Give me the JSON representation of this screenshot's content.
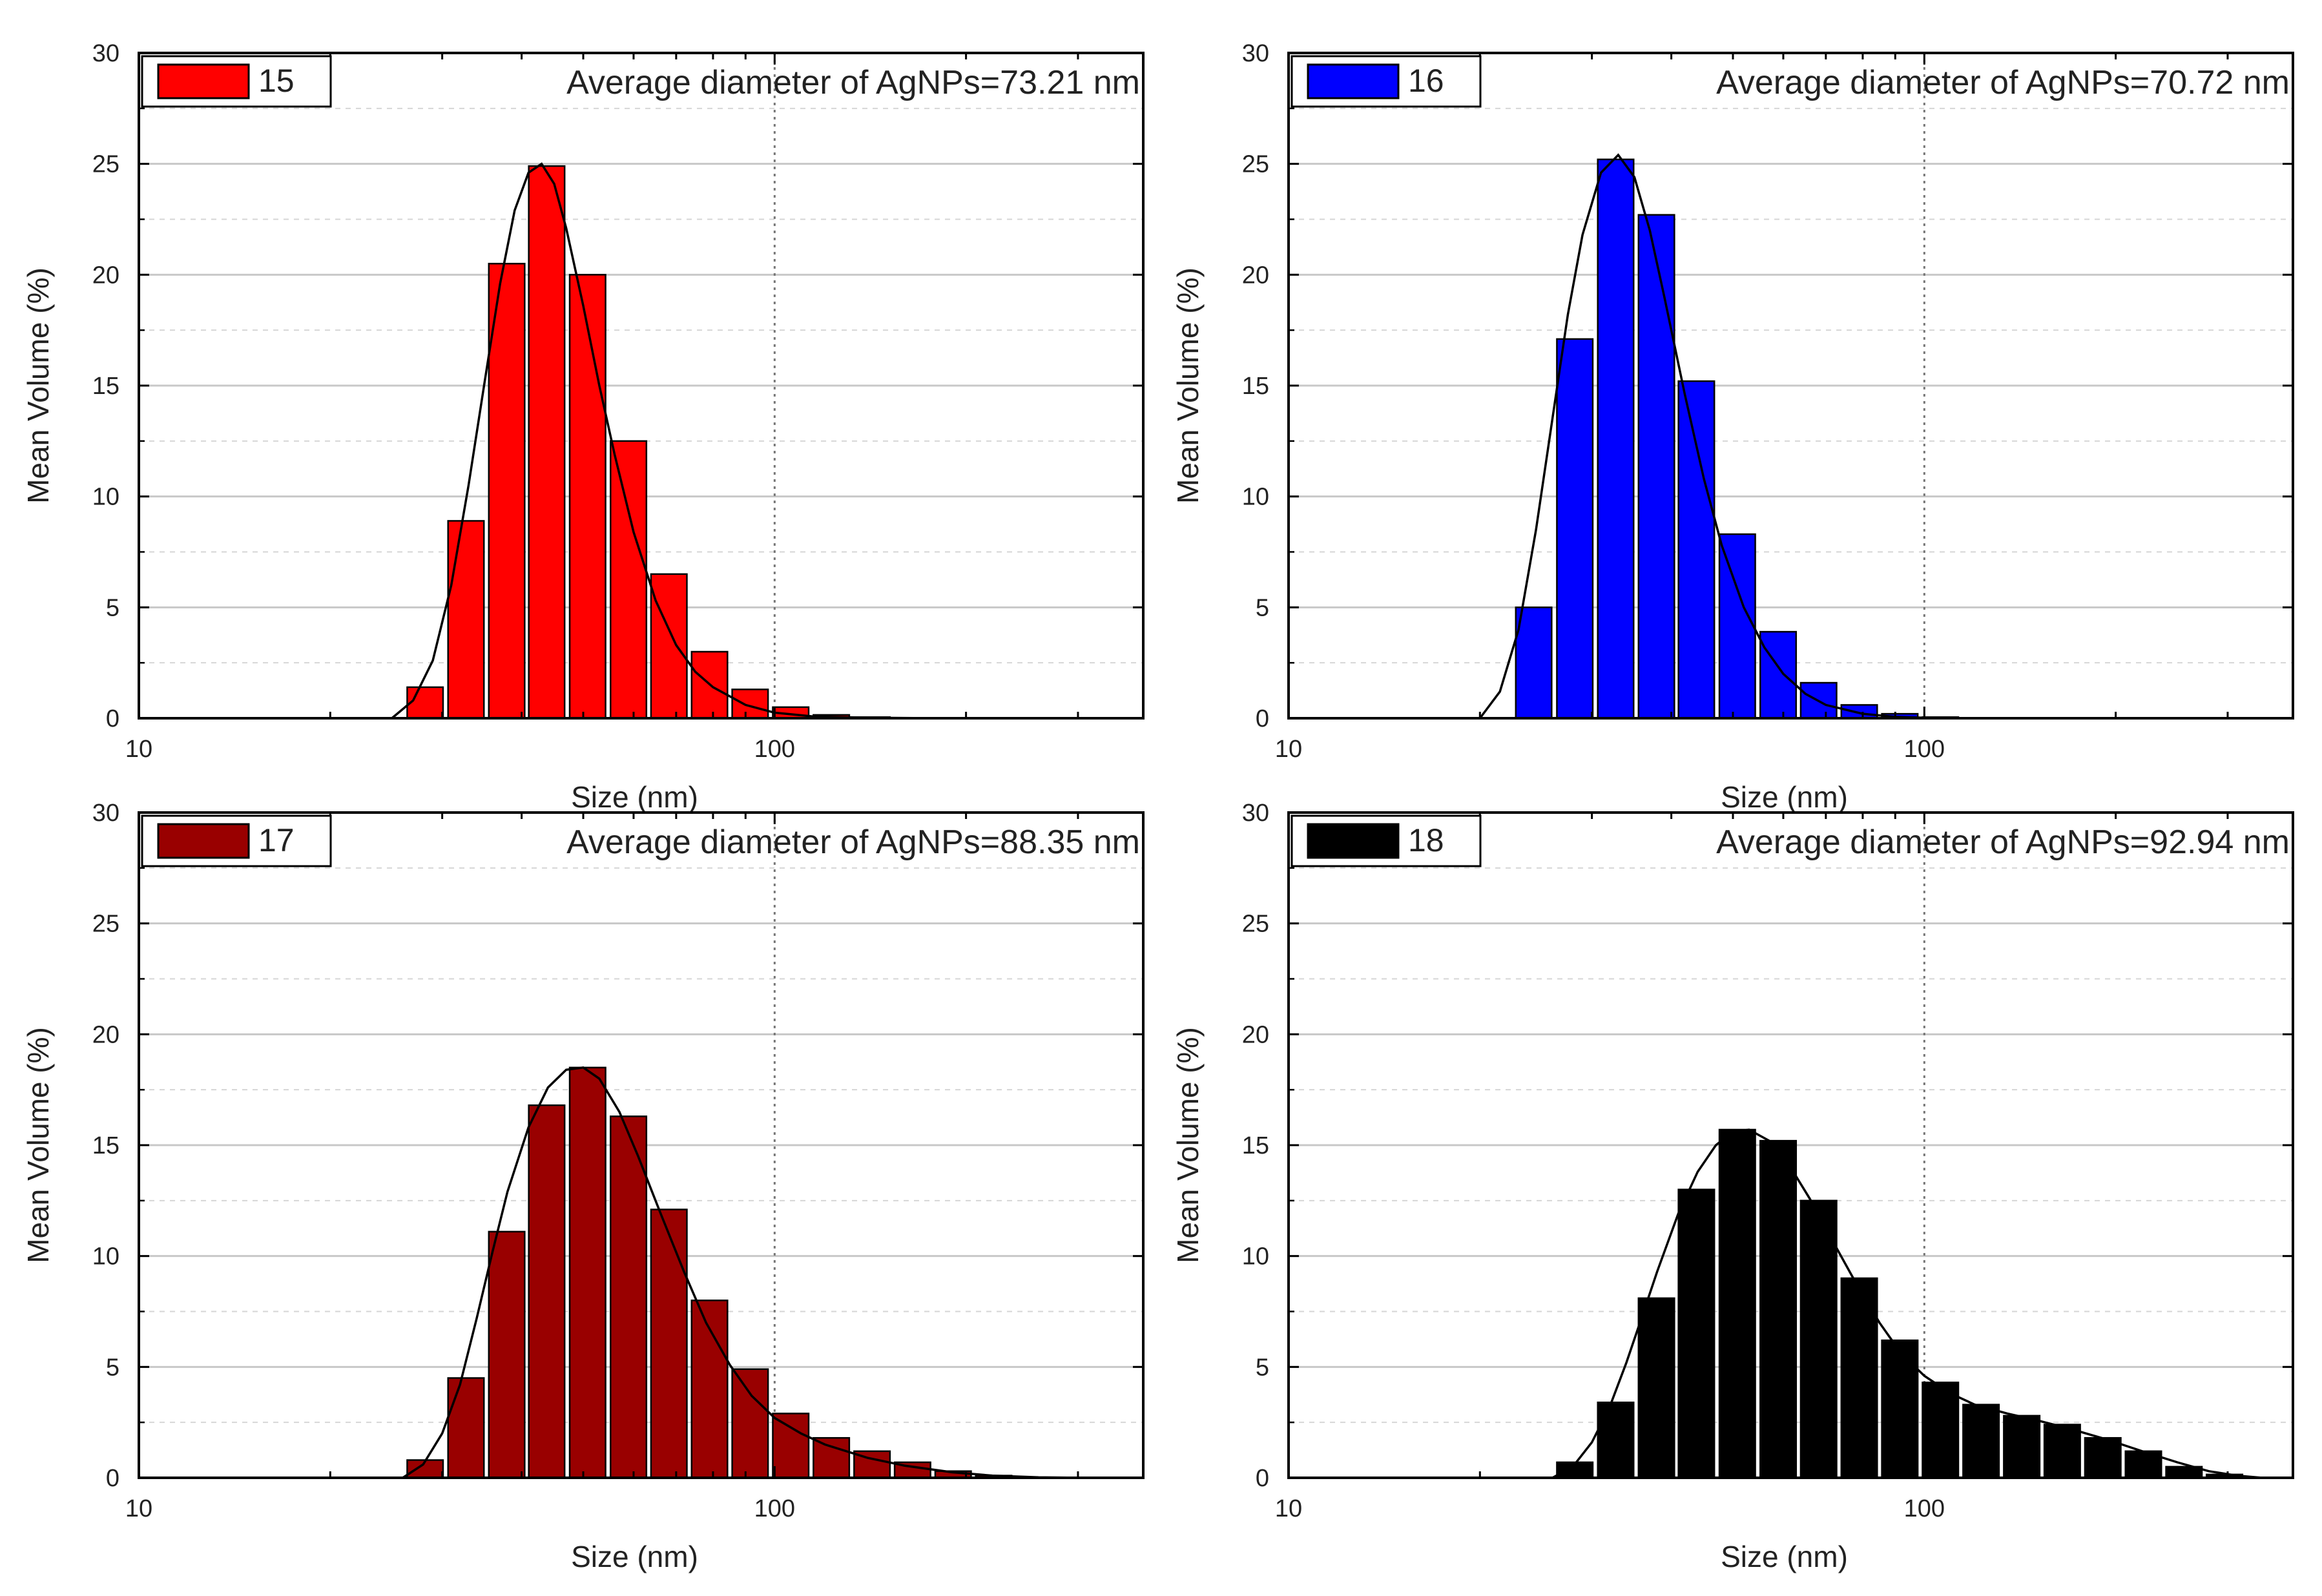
{
  "chart_data": [
    {
      "type": "bar",
      "legend": "15",
      "color": "#ff0000",
      "annotation": "Average diameter of AgNPs=73.21 nm",
      "xlabel": "Size (nm)",
      "ylabel": "Mean Volume (%)",
      "xscale": "log",
      "xlim": [
        10,
        380
      ],
      "ylim": [
        0,
        30
      ],
      "xticks": [
        "10",
        "100"
      ],
      "yticks": [
        "0",
        "5",
        "10",
        "15",
        "20",
        "25",
        "30"
      ],
      "grid": true,
      "reference_line_x": 100,
      "bar_log_width": 0.0625,
      "bars": [
        {
          "x": 28.2,
          "y": 1.4
        },
        {
          "x": 32.7,
          "y": 8.9
        },
        {
          "x": 37.9,
          "y": 20.5
        },
        {
          "x": 43.8,
          "y": 24.9
        },
        {
          "x": 50.8,
          "y": 20.0
        },
        {
          "x": 58.9,
          "y": 12.5
        },
        {
          "x": 68.2,
          "y": 6.5
        },
        {
          "x": 79.0,
          "y": 3.0
        },
        {
          "x": 91.5,
          "y": 1.3
        },
        {
          "x": 106.0,
          "y": 0.5
        },
        {
          "x": 122.8,
          "y": 0.15
        },
        {
          "x": 142.3,
          "y": 0.05
        }
      ],
      "curve": [
        [
          25.0,
          0.0
        ],
        [
          27.0,
          0.8
        ],
        [
          29.0,
          2.6
        ],
        [
          31.0,
          6.0
        ],
        [
          33.0,
          10.5
        ],
        [
          35.0,
          15.2
        ],
        [
          37.0,
          19.6
        ],
        [
          39.0,
          22.9
        ],
        [
          41.0,
          24.6
        ],
        [
          43.0,
          25.0
        ],
        [
          45.0,
          24.1
        ],
        [
          47.0,
          22.1
        ],
        [
          50.0,
          18.6
        ],
        [
          53.0,
          15.0
        ],
        [
          56.0,
          11.9
        ],
        [
          60.0,
          8.4
        ],
        [
          65.0,
          5.3
        ],
        [
          70.0,
          3.3
        ],
        [
          75.0,
          2.1
        ],
        [
          80.0,
          1.4
        ],
        [
          90.0,
          0.6
        ],
        [
          100.0,
          0.25
        ],
        [
          115.0,
          0.08
        ],
        [
          140.0,
          0.02
        ],
        [
          180.0,
          0.0
        ]
      ]
    },
    {
      "type": "bar",
      "legend": "16",
      "color": "#0000ff",
      "annotation": "Average diameter of AgNPs=70.72 nm",
      "xlabel": "Size (nm)",
      "ylabel": "Mean Volume (%)",
      "xscale": "log",
      "xlim": [
        10,
        380
      ],
      "ylim": [
        0,
        30
      ],
      "xticks": [
        "10",
        "100"
      ],
      "yticks": [
        "0",
        "5",
        "10",
        "15",
        "20",
        "25",
        "30"
      ],
      "grid": true,
      "reference_line_x": 100,
      "bar_log_width": 0.0625,
      "bars": [
        {
          "x": 24.3,
          "y": 5.0
        },
        {
          "x": 28.2,
          "y": 17.1
        },
        {
          "x": 32.7,
          "y": 25.2
        },
        {
          "x": 37.9,
          "y": 22.7
        },
        {
          "x": 43.8,
          "y": 15.2
        },
        {
          "x": 50.8,
          "y": 8.3
        },
        {
          "x": 58.9,
          "y": 3.9
        },
        {
          "x": 68.2,
          "y": 1.6
        },
        {
          "x": 79.0,
          "y": 0.6
        },
        {
          "x": 91.5,
          "y": 0.2
        },
        {
          "x": 106.0,
          "y": 0.05
        }
      ],
      "curve": [
        [
          20.0,
          0.0
        ],
        [
          21.5,
          1.2
        ],
        [
          23.0,
          4.0
        ],
        [
          24.5,
          8.5
        ],
        [
          26.0,
          13.5
        ],
        [
          27.5,
          18.2
        ],
        [
          29.0,
          21.8
        ],
        [
          31.0,
          24.6
        ],
        [
          33.0,
          25.4
        ],
        [
          35.0,
          24.4
        ],
        [
          37.0,
          22.0
        ],
        [
          39.0,
          19.0
        ],
        [
          42.0,
          14.6
        ],
        [
          45.0,
          10.8
        ],
        [
          48.0,
          7.8
        ],
        [
          52.0,
          5.0
        ],
        [
          56.0,
          3.2
        ],
        [
          60.0,
          2.0
        ],
        [
          65.0,
          1.1
        ],
        [
          70.0,
          0.6
        ],
        [
          80.0,
          0.2
        ],
        [
          90.0,
          0.06
        ],
        [
          100.0,
          0.02
        ],
        [
          110.0,
          0.0
        ]
      ]
    },
    {
      "type": "bar",
      "legend": "17",
      "color": "#990000",
      "annotation": "Average diameter of AgNPs=88.35 nm",
      "xlabel": "Size (nm)",
      "ylabel": "Mean Volume (%)",
      "xscale": "log",
      "xlim": [
        10,
        380
      ],
      "ylim": [
        0,
        30
      ],
      "xticks": [
        "10",
        "100"
      ],
      "yticks": [
        "0",
        "5",
        "10",
        "15",
        "20",
        "25",
        "30"
      ],
      "grid": true,
      "reference_line_x": 100,
      "bar_log_width": 0.0625,
      "bars": [
        {
          "x": 28.2,
          "y": 0.8
        },
        {
          "x": 32.7,
          "y": 4.5
        },
        {
          "x": 37.9,
          "y": 11.1
        },
        {
          "x": 43.8,
          "y": 16.8
        },
        {
          "x": 50.8,
          "y": 18.5
        },
        {
          "x": 58.9,
          "y": 16.3
        },
        {
          "x": 68.2,
          "y": 12.1
        },
        {
          "x": 79.0,
          "y": 8.0
        },
        {
          "x": 91.5,
          "y": 4.9
        },
        {
          "x": 106.0,
          "y": 2.9
        },
        {
          "x": 122.8,
          "y": 1.8
        },
        {
          "x": 142.3,
          "y": 1.2
        },
        {
          "x": 164.8,
          "y": 0.7
        },
        {
          "x": 190.9,
          "y": 0.3
        },
        {
          "x": 221.1,
          "y": 0.1
        }
      ],
      "curve": [
        [
          26.0,
          0.0
        ],
        [
          28.0,
          0.6
        ],
        [
          30.0,
          2.0
        ],
        [
          32.0,
          4.2
        ],
        [
          34.0,
          7.2
        ],
        [
          36.0,
          10.2
        ],
        [
          38.0,
          12.9
        ],
        [
          41.0,
          15.8
        ],
        [
          44.0,
          17.6
        ],
        [
          47.0,
          18.4
        ],
        [
          50.0,
          18.5
        ],
        [
          53.0,
          18.0
        ],
        [
          57.0,
          16.5
        ],
        [
          61.0,
          14.5
        ],
        [
          66.0,
          12.0
        ],
        [
          72.0,
          9.3
        ],
        [
          78.0,
          7.0
        ],
        [
          85.0,
          5.1
        ],
        [
          92.0,
          3.7
        ],
        [
          100.0,
          2.7
        ],
        [
          110.0,
          2.0
        ],
        [
          120.0,
          1.5
        ],
        [
          140.0,
          0.9
        ],
        [
          160.0,
          0.55
        ],
        [
          190.0,
          0.25
        ],
        [
          220.0,
          0.1
        ],
        [
          260.0,
          0.02
        ],
        [
          300.0,
          0.0
        ]
      ]
    },
    {
      "type": "bar",
      "legend": "18",
      "color": "#000000",
      "annotation": "Average diameter of AgNPs=92.94 nm",
      "xlabel": "Size (nm)",
      "ylabel": "Mean Volume (%)",
      "xscale": "log",
      "xlim": [
        10,
        380
      ],
      "ylim": [
        0,
        30
      ],
      "xticks": [
        "10",
        "100"
      ],
      "yticks": [
        "0",
        "5",
        "10",
        "15",
        "20",
        "25",
        "30"
      ],
      "grid": true,
      "reference_line_x": 100,
      "bar_log_width": 0.0625,
      "bars": [
        {
          "x": 28.2,
          "y": 0.7
        },
        {
          "x": 32.7,
          "y": 3.4
        },
        {
          "x": 37.9,
          "y": 8.1
        },
        {
          "x": 43.8,
          "y": 13.0
        },
        {
          "x": 50.8,
          "y": 15.7
        },
        {
          "x": 58.9,
          "y": 15.2
        },
        {
          "x": 68.2,
          "y": 12.5
        },
        {
          "x": 79.0,
          "y": 9.0
        },
        {
          "x": 91.5,
          "y": 6.2
        },
        {
          "x": 106.0,
          "y": 4.3
        },
        {
          "x": 122.8,
          "y": 3.3
        },
        {
          "x": 142.3,
          "y": 2.8
        },
        {
          "x": 164.8,
          "y": 2.4
        },
        {
          "x": 190.9,
          "y": 1.8
        },
        {
          "x": 221.1,
          "y": 1.2
        },
        {
          "x": 256.1,
          "y": 0.5
        },
        {
          "x": 296.6,
          "y": 0.15
        }
      ],
      "curve": [
        [
          26.0,
          0.0
        ],
        [
          28.0,
          0.5
        ],
        [
          30.0,
          1.6
        ],
        [
          32.0,
          3.2
        ],
        [
          34.0,
          5.2
        ],
        [
          36.0,
          7.3
        ],
        [
          38.0,
          9.3
        ],
        [
          41.0,
          11.9
        ],
        [
          44.0,
          13.8
        ],
        [
          47.0,
          15.0
        ],
        [
          50.0,
          15.6
        ],
        [
          53.0,
          15.7
        ],
        [
          57.0,
          15.2
        ],
        [
          61.0,
          14.2
        ],
        [
          66.0,
          12.6
        ],
        [
          72.0,
          10.6
        ],
        [
          78.0,
          8.8
        ],
        [
          85.0,
          7.0
        ],
        [
          92.0,
          5.6
        ],
        [
          100.0,
          4.6
        ],
        [
          110.0,
          3.8
        ],
        [
          120.0,
          3.3
        ],
        [
          135.0,
          2.9
        ],
        [
          150.0,
          2.6
        ],
        [
          170.0,
          2.2
        ],
        [
          195.0,
          1.7
        ],
        [
          220.0,
          1.2
        ],
        [
          250.0,
          0.7
        ],
        [
          280.0,
          0.3
        ],
        [
          310.0,
          0.1
        ],
        [
          340.0,
          0.0
        ]
      ]
    }
  ]
}
